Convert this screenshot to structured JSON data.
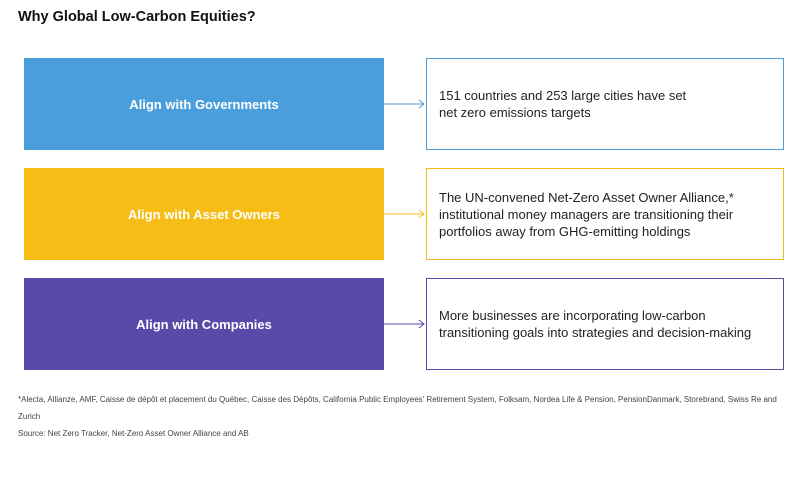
{
  "title": "Why Global Low-Carbon Equities?",
  "rows": [
    {
      "label": "Align with Governments",
      "description": "151 countries and 253 large cities have set\nnet zero emissions targets",
      "color": "#4a9edb",
      "border_color": "#4a9edb"
    },
    {
      "label": "Align with Asset Owners",
      "description": "The UN-convened Net-Zero Asset Owner Alliance,*\ninstitutional money managers are transitioning their\nportfolios away from GHG-emitting holdings",
      "color": "#f5bd16",
      "border_color": "#f5bd16"
    },
    {
      "label": "Align with Companies",
      "description": "More businesses are incorporating low-carbon\ntransitioning goals into strategies and decision-making",
      "color": "#5a49a8",
      "border_color": "#5a49a8"
    }
  ],
  "footnote": "*Alecta, Allianze, AMF, Caisse de dépôt et placement du Québec, Caisse des Dépôts, California Public Employees' Retirement System, Folksam, Nordea Life & Pension, PensionDanmark, Storebrand, Swiss Re and Zurich",
  "source": "Source: Net Zero Tracker, Net-Zero Asset Owner Alliance and AB"
}
